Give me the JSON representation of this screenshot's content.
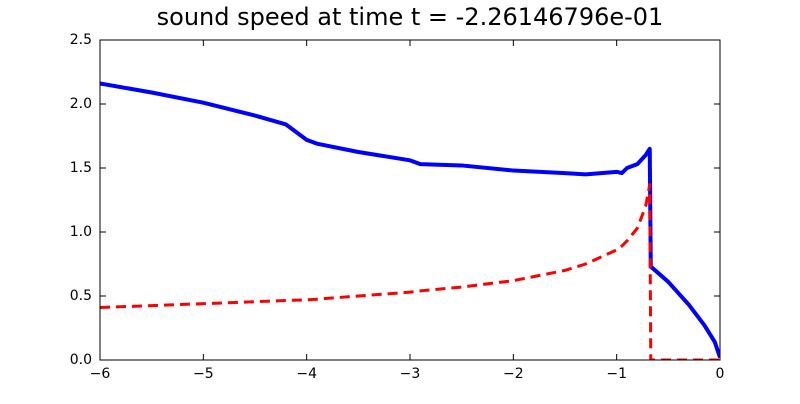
{
  "chart_data": {
    "type": "line",
    "title": "sound speed at time t = -2.26146796e-01",
    "x": [
      -6,
      -5.5,
      -5,
      -4.5,
      -4.2,
      -4.0,
      -3.9,
      -3.5,
      -3.0,
      -2.9,
      -2.5,
      -2.0,
      -1.5,
      -1.3,
      -1.0,
      -0.95,
      -0.9,
      -0.8,
      -0.72,
      -0.68,
      -0.67,
      -0.5,
      -0.3,
      -0.15,
      -0.05,
      0
    ],
    "series": [
      {
        "color": "#0000ff",
        "style": "solid",
        "values": [
          2.16,
          2.09,
          2.01,
          1.91,
          1.84,
          1.72,
          1.69,
          1.625,
          1.56,
          1.53,
          1.52,
          1.48,
          1.46,
          1.45,
          1.47,
          1.46,
          1.5,
          1.53,
          1.6,
          1.65,
          0.73,
          0.61,
          0.43,
          0.27,
          0.14,
          0.02
        ]
      },
      {
        "color": "#ff0000",
        "style": "dashed",
        "values": [
          0.41,
          0.425,
          0.44,
          0.455,
          0.465,
          0.47,
          0.475,
          0.5,
          0.53,
          0.54,
          0.57,
          0.62,
          0.7,
          0.75,
          0.86,
          0.89,
          0.93,
          1.03,
          1.2,
          1.37,
          0.0,
          0.0,
          0.0,
          0.0,
          0.0,
          0.0
        ]
      }
    ],
    "xlim": [
      -6,
      0
    ],
    "ylim": [
      0,
      2.5
    ],
    "xticks": [
      {
        "value": -6,
        "label": "−6"
      },
      {
        "value": -5,
        "label": "−5"
      },
      {
        "value": -4,
        "label": "−4"
      },
      {
        "value": -3,
        "label": "−3"
      },
      {
        "value": -2,
        "label": "−2"
      },
      {
        "value": -1,
        "label": "−1"
      },
      0
    ],
    "yticks": [
      {
        "value": 0,
        "label": "0.0"
      },
      0.5,
      {
        "value": 1,
        "label": "1.0"
      },
      1.5,
      {
        "value": 2,
        "label": "2.0"
      },
      2.5
    ],
    "grid": false
  }
}
